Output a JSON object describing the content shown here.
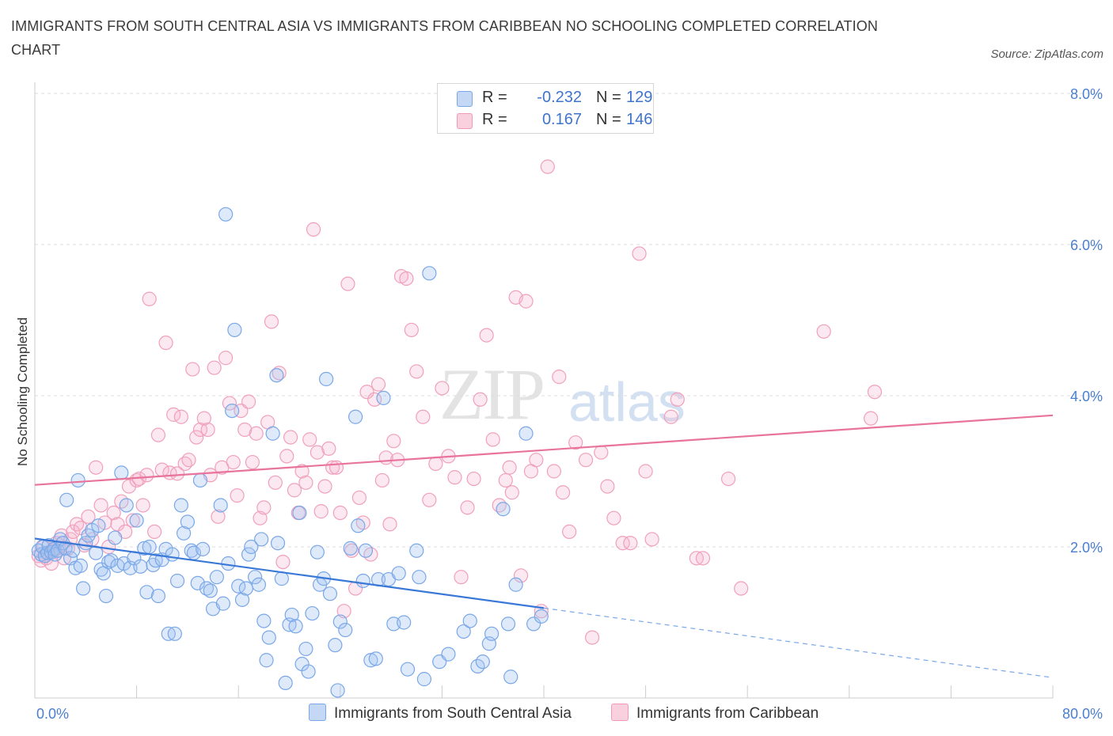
{
  "title": "IMMIGRANTS FROM SOUTH CENTRAL ASIA VS IMMIGRANTS FROM CARIBBEAN NO SCHOOLING COMPLETED CORRELATION CHART",
  "source": "Source: ZipAtlas.com",
  "watermark": {
    "zip": "ZIP",
    "atlas": "atlas"
  },
  "legend": {
    "series1": {
      "r_label": "R =",
      "r_value": "-0.232",
      "n_label": "N =",
      "n_value": "129",
      "color": "#7aa7e8"
    },
    "series2": {
      "r_label": "R =",
      "r_value": "0.167",
      "n_label": "N =",
      "n_value": "146",
      "color": "#f19ab5"
    }
  },
  "bottom_legend": {
    "series1": "Immigrants from South Central Asia",
    "series2": "Immigrants from Caribbean"
  },
  "chart_data": {
    "type": "scatter",
    "title": "IMMIGRANTS FROM SOUTH CENTRAL ASIA VS IMMIGRANTS FROM CARIBBEAN NO SCHOOLING COMPLETED CORRELATION CHART",
    "xlabel": "",
    "ylabel": "No Schooling Completed",
    "xlim": [
      0,
      80
    ],
    "ylim": [
      0,
      8
    ],
    "x_tick_labels": [
      "0.0%",
      "80.0%"
    ],
    "y_ticks": [
      2,
      4,
      6,
      8
    ],
    "y_tick_labels": [
      "2.0%",
      "4.0%",
      "6.0%",
      "8.0%"
    ],
    "grid": "horizontal dashed",
    "series": [
      {
        "name": "Immigrants from South Central Asia",
        "color": "#7aa7e8",
        "trend": {
          "x0": 0,
          "y0": 2.11,
          "x1": 40,
          "y1": 1.19,
          "dashed_to_x": 80,
          "dashed_to_y": 0.27
        },
        "points": [
          [
            0.3,
            1.95
          ],
          [
            0.5,
            1.9
          ],
          [
            0.6,
            2.0
          ],
          [
            0.8,
            1.88
          ],
          [
            1.0,
            1.92
          ],
          [
            1.1,
            2.02
          ],
          [
            1.3,
            1.93
          ],
          [
            1.5,
            1.97
          ],
          [
            1.6,
            1.9
          ],
          [
            1.8,
            1.95
          ],
          [
            2.0,
            2.1
          ],
          [
            2.2,
            2.05
          ],
          [
            2.4,
            1.98
          ],
          [
            2.5,
            2.62
          ],
          [
            2.8,
            1.85
          ],
          [
            3.0,
            1.95
          ],
          [
            3.2,
            1.72
          ],
          [
            3.4,
            2.88
          ],
          [
            3.6,
            1.75
          ],
          [
            3.8,
            1.45
          ],
          [
            4.0,
            2.05
          ],
          [
            4.2,
            2.15
          ],
          [
            4.5,
            2.22
          ],
          [
            4.8,
            1.92
          ],
          [
            5.0,
            2.28
          ],
          [
            5.2,
            1.7
          ],
          [
            5.4,
            1.65
          ],
          [
            5.6,
            1.35
          ],
          [
            5.8,
            1.8
          ],
          [
            6.0,
            1.82
          ],
          [
            6.3,
            2.12
          ],
          [
            6.5,
            1.75
          ],
          [
            6.8,
            2.98
          ],
          [
            7.0,
            1.78
          ],
          [
            7.2,
            2.55
          ],
          [
            7.5,
            1.72
          ],
          [
            7.8,
            1.85
          ],
          [
            8.0,
            2.35
          ],
          [
            8.3,
            1.74
          ],
          [
            8.6,
            1.98
          ],
          [
            8.8,
            1.4
          ],
          [
            9.0,
            2.0
          ],
          [
            9.3,
            1.76
          ],
          [
            9.5,
            1.82
          ],
          [
            9.7,
            1.35
          ],
          [
            10.0,
            1.83
          ],
          [
            10.3,
            1.97
          ],
          [
            10.5,
            0.85
          ],
          [
            10.8,
            1.9
          ],
          [
            11.0,
            0.85
          ],
          [
            11.2,
            1.55
          ],
          [
            11.5,
            2.55
          ],
          [
            11.7,
            2.18
          ],
          [
            12.0,
            2.33
          ],
          [
            12.3,
            1.95
          ],
          [
            12.5,
            1.92
          ],
          [
            12.8,
            1.52
          ],
          [
            13.0,
            2.88
          ],
          [
            13.2,
            1.97
          ],
          [
            13.5,
            1.45
          ],
          [
            13.8,
            1.42
          ],
          [
            14.0,
            1.18
          ],
          [
            14.3,
            1.6
          ],
          [
            14.6,
            2.55
          ],
          [
            14.8,
            1.25
          ],
          [
            15.0,
            6.4
          ],
          [
            15.2,
            1.78
          ],
          [
            15.5,
            3.8
          ],
          [
            15.7,
            4.87
          ],
          [
            16.0,
            1.48
          ],
          [
            16.3,
            1.3
          ],
          [
            16.6,
            1.45
          ],
          [
            16.8,
            1.9
          ],
          [
            17.0,
            2.0
          ],
          [
            17.3,
            1.6
          ],
          [
            17.6,
            1.5
          ],
          [
            17.8,
            2.1
          ],
          [
            18.0,
            1.02
          ],
          [
            18.2,
            0.5
          ],
          [
            18.4,
            0.8
          ],
          [
            18.7,
            3.5
          ],
          [
            19.0,
            4.27
          ],
          [
            19.1,
            2.05
          ],
          [
            19.4,
            1.58
          ],
          [
            19.7,
            0.2
          ],
          [
            20.0,
            0.97
          ],
          [
            20.2,
            1.1
          ],
          [
            20.5,
            0.95
          ],
          [
            20.8,
            2.45
          ],
          [
            21.0,
            0.45
          ],
          [
            21.3,
            0.65
          ],
          [
            21.5,
            0.35
          ],
          [
            21.8,
            1.12
          ],
          [
            22.2,
            1.93
          ],
          [
            22.4,
            1.5
          ],
          [
            22.7,
            1.58
          ],
          [
            22.9,
            4.22
          ],
          [
            23.2,
            1.38
          ],
          [
            23.6,
            0.7
          ],
          [
            23.8,
            0.1
          ],
          [
            24.0,
            1.01
          ],
          [
            24.4,
            0.9
          ],
          [
            24.8,
            1.98
          ],
          [
            25.2,
            3.72
          ],
          [
            25.4,
            2.28
          ],
          [
            25.8,
            1.55
          ],
          [
            26.0,
            1.95
          ],
          [
            26.4,
            0.5
          ],
          [
            26.8,
            0.52
          ],
          [
            27.0,
            1.57
          ],
          [
            27.4,
            3.97
          ],
          [
            27.8,
            1.57
          ],
          [
            28.2,
            0.98
          ],
          [
            28.6,
            1.65
          ],
          [
            29.0,
            1.0
          ],
          [
            29.3,
            0.38
          ],
          [
            30.0,
            1.95
          ],
          [
            30.6,
            0.25
          ],
          [
            31.0,
            5.62
          ],
          [
            31.8,
            0.48
          ],
          [
            32.5,
            0.58
          ],
          [
            33.7,
            0.88
          ],
          [
            34.2,
            1.02
          ],
          [
            34.8,
            0.42
          ],
          [
            35.2,
            0.48
          ],
          [
            35.7,
            0.72
          ],
          [
            35.9,
            0.85
          ],
          [
            36.8,
            2.5
          ],
          [
            37.2,
            0.98
          ],
          [
            37.4,
            0.28
          ],
          [
            37.8,
            1.5
          ],
          [
            38.6,
            3.5
          ],
          [
            39.2,
            0.98
          ],
          [
            39.8,
            1.08
          ],
          [
            30.2,
            1.6
          ]
        ]
      },
      {
        "name": "Immigrants from Caribbean",
        "color": "#f19ab5",
        "trend": {
          "x0": 0,
          "y0": 2.82,
          "x1": 80,
          "y1": 3.74
        },
        "points": [
          [
            0.3,
            1.88
          ],
          [
            0.5,
            1.82
          ],
          [
            0.7,
            2.0
          ],
          [
            0.9,
            1.85
          ],
          [
            1.1,
            1.92
          ],
          [
            1.3,
            1.78
          ],
          [
            1.5,
            1.95
          ],
          [
            1.7,
            2.05
          ],
          [
            1.9,
            1.98
          ],
          [
            2.1,
            2.15
          ],
          [
            2.3,
            1.85
          ],
          [
            2.6,
            1.98
          ],
          [
            2.8,
            2.1
          ],
          [
            3.0,
            2.2
          ],
          [
            3.3,
            2.3
          ],
          [
            3.6,
            2.25
          ],
          [
            3.9,
            2.02
          ],
          [
            4.2,
            2.4
          ],
          [
            4.5,
            2.1
          ],
          [
            4.8,
            3.05
          ],
          [
            5.2,
            2.55
          ],
          [
            5.5,
            2.32
          ],
          [
            5.8,
            2.0
          ],
          [
            6.2,
            2.45
          ],
          [
            6.5,
            2.3
          ],
          [
            6.8,
            2.6
          ],
          [
            7.1,
            2.2
          ],
          [
            7.4,
            2.8
          ],
          [
            7.7,
            2.35
          ],
          [
            8.0,
            2.88
          ],
          [
            8.2,
            2.9
          ],
          [
            8.5,
            2.55
          ],
          [
            8.8,
            2.95
          ],
          [
            9.0,
            5.28
          ],
          [
            9.4,
            2.2
          ],
          [
            9.7,
            3.48
          ],
          [
            10.0,
            3.02
          ],
          [
            10.3,
            4.7
          ],
          [
            10.6,
            2.98
          ],
          [
            10.9,
            3.75
          ],
          [
            11.2,
            2.97
          ],
          [
            11.5,
            3.72
          ],
          [
            11.8,
            3.1
          ],
          [
            12.1,
            3.15
          ],
          [
            12.4,
            4.35
          ],
          [
            12.7,
            3.45
          ],
          [
            13.0,
            3.55
          ],
          [
            13.3,
            3.7
          ],
          [
            13.6,
            3.55
          ],
          [
            13.8,
            2.95
          ],
          [
            14.1,
            4.37
          ],
          [
            14.4,
            2.4
          ],
          [
            14.7,
            3.05
          ],
          [
            15.0,
            4.5
          ],
          [
            15.3,
            3.9
          ],
          [
            15.6,
            3.12
          ],
          [
            15.9,
            2.68
          ],
          [
            16.2,
            3.8
          ],
          [
            16.5,
            3.55
          ],
          [
            16.8,
            3.92
          ],
          [
            17.1,
            3.12
          ],
          [
            17.4,
            3.5
          ],
          [
            17.7,
            2.38
          ],
          [
            18.0,
            2.52
          ],
          [
            18.3,
            3.65
          ],
          [
            18.6,
            4.98
          ],
          [
            18.9,
            2.85
          ],
          [
            19.2,
            4.3
          ],
          [
            19.5,
            1.8
          ],
          [
            19.8,
            3.2
          ],
          [
            20.1,
            3.45
          ],
          [
            20.4,
            2.75
          ],
          [
            20.7,
            2.45
          ],
          [
            21.0,
            3.0
          ],
          [
            21.3,
            2.85
          ],
          [
            21.6,
            3.42
          ],
          [
            21.9,
            6.2
          ],
          [
            22.2,
            3.25
          ],
          [
            22.5,
            2.47
          ],
          [
            22.8,
            2.8
          ],
          [
            23.1,
            3.3
          ],
          [
            23.4,
            3.05
          ],
          [
            23.7,
            3.05
          ],
          [
            24.0,
            2.45
          ],
          [
            24.3,
            1.15
          ],
          [
            24.6,
            5.48
          ],
          [
            24.9,
            1.95
          ],
          [
            25.2,
            1.45
          ],
          [
            25.5,
            2.65
          ],
          [
            25.8,
            2.32
          ],
          [
            26.1,
            4.05
          ],
          [
            26.4,
            1.9
          ],
          [
            26.7,
            3.95
          ],
          [
            27.0,
            4.15
          ],
          [
            27.3,
            2.88
          ],
          [
            27.6,
            3.18
          ],
          [
            27.9,
            2.3
          ],
          [
            28.2,
            3.4
          ],
          [
            28.5,
            3.15
          ],
          [
            28.8,
            5.58
          ],
          [
            29.2,
            5.55
          ],
          [
            29.6,
            4.87
          ],
          [
            30.0,
            4.32
          ],
          [
            30.5,
            3.72
          ],
          [
            31.0,
            2.62
          ],
          [
            31.5,
            3.1
          ],
          [
            32.0,
            4.1
          ],
          [
            32.5,
            3.2
          ],
          [
            33.0,
            2.92
          ],
          [
            33.5,
            1.6
          ],
          [
            34.0,
            2.52
          ],
          [
            34.5,
            2.9
          ],
          [
            35.0,
            3.95
          ],
          [
            35.5,
            4.8
          ],
          [
            36.0,
            3.42
          ],
          [
            36.5,
            2.55
          ],
          [
            37.0,
            2.88
          ],
          [
            37.3,
            3.05
          ],
          [
            37.5,
            2.72
          ],
          [
            37.8,
            5.3
          ],
          [
            38.2,
            1.62
          ],
          [
            38.6,
            5.25
          ],
          [
            39.0,
            3.0
          ],
          [
            39.4,
            3.15
          ],
          [
            39.8,
            1.15
          ],
          [
            40.3,
            7.03
          ],
          [
            40.8,
            3.0
          ],
          [
            41.5,
            2.72
          ],
          [
            42.0,
            2.2
          ],
          [
            42.5,
            3.38
          ],
          [
            43.3,
            3.15
          ],
          [
            43.8,
            0.8
          ],
          [
            44.5,
            3.25
          ],
          [
            45.0,
            2.8
          ],
          [
            45.5,
            2.38
          ],
          [
            46.2,
            2.05
          ],
          [
            46.8,
            2.05
          ],
          [
            47.5,
            5.88
          ],
          [
            48.0,
            3.0
          ],
          [
            48.5,
            2.1
          ],
          [
            50.0,
            3.72
          ],
          [
            50.5,
            3.95
          ],
          [
            52.0,
            1.85
          ],
          [
            52.5,
            1.85
          ],
          [
            54.5,
            2.9
          ],
          [
            55.5,
            1.45
          ],
          [
            62.0,
            4.85
          ],
          [
            65.7,
            3.7
          ],
          [
            66.0,
            4.05
          ],
          [
            41.2,
            4.25
          ]
        ]
      }
    ]
  }
}
